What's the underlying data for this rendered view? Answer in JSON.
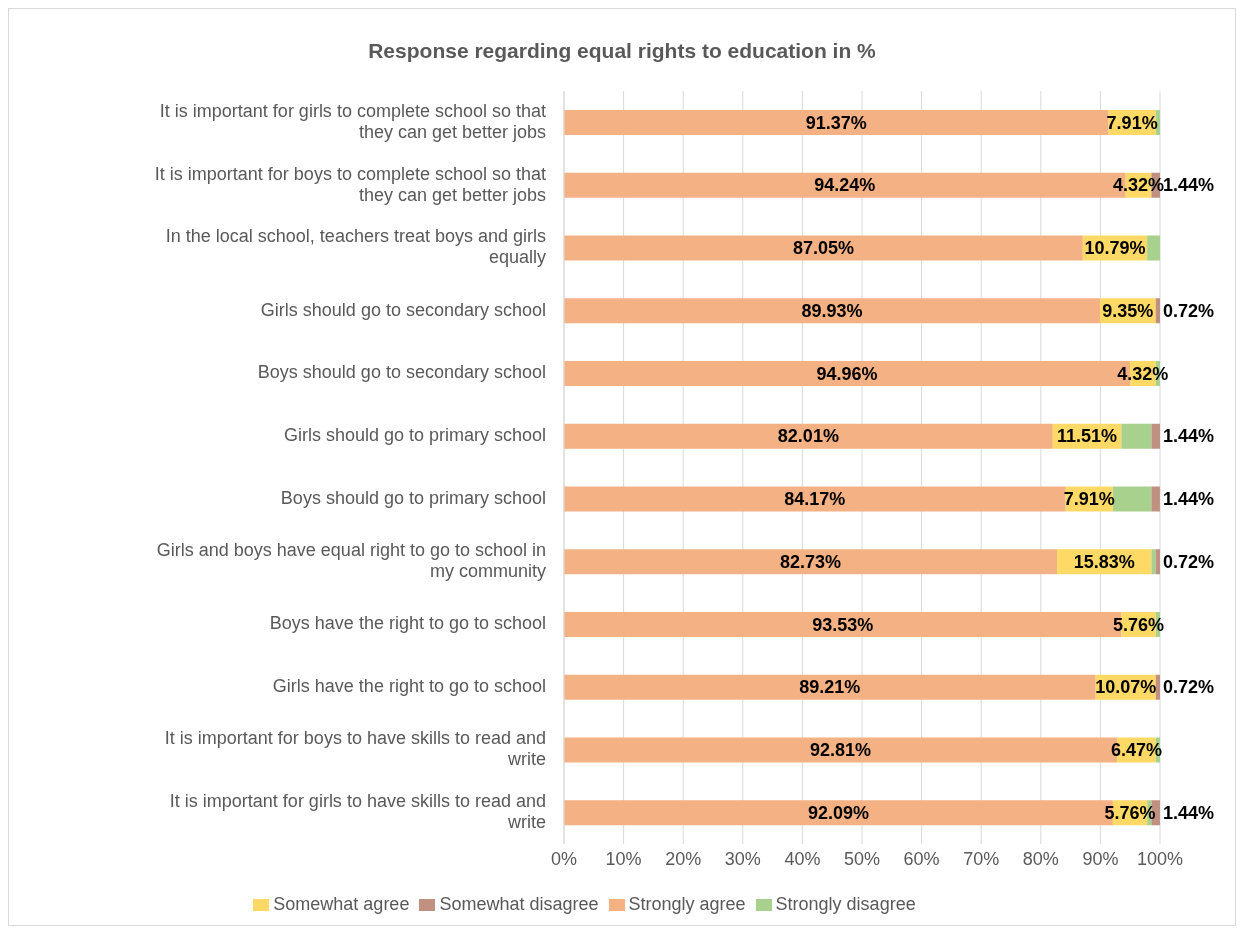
{
  "chart_data": {
    "type": "bar",
    "orientation": "horizontal",
    "stacked": true,
    "title": "Response regarding equal rights to education in %",
    "categories": [
      "It is important for girls to complete school so that they can get better jobs",
      "It is important for boys to complete school so that they can get better jobs",
      "In the local school, teachers treat boys and girls equally",
      "Girls should go to secondary school",
      "Boys should go to secondary school",
      "Girls should go to primary school",
      "Boys should go to primary school",
      "Girls and boys have equal right to go to school in my community",
      "Boys have the right to go to school",
      "Girls have the right to go to school",
      "It is important for boys to have skills to read and write",
      "It is important for girls to have skills to read and write"
    ],
    "series": [
      {
        "name": "Strongly agree",
        "color": "#f4b183",
        "values": [
          91.37,
          94.24,
          87.05,
          89.93,
          94.96,
          82.01,
          84.17,
          82.73,
          93.53,
          89.21,
          92.81,
          92.09
        ],
        "value_labels": [
          "91.37%",
          "94.24%",
          "87.05%",
          "89.93%",
          "94.96%",
          "82.01%",
          "84.17%",
          "82.73%",
          "93.53%",
          "89.21%",
          "92.81%",
          "92.09%"
        ]
      },
      {
        "name": "Somewhat agree",
        "color": "#ffd966",
        "values": [
          7.91,
          4.32,
          10.79,
          9.35,
          4.32,
          11.51,
          7.91,
          15.83,
          5.76,
          10.07,
          6.47,
          5.76
        ],
        "value_labels": [
          "7.91%",
          "4.32%",
          "10.79%",
          "9.35%",
          "4.32%",
          "11.51%",
          "7.91%",
          "15.83%",
          "5.76%",
          "10.07%",
          "6.47%",
          "5.76%"
        ]
      },
      {
        "name": "Strongly disagree",
        "color": "#a9d18e",
        "values": [
          0.72,
          0,
          2.16,
          0,
          0.72,
          5.04,
          6.47,
          0.72,
          0.71,
          0,
          0.72,
          0.71
        ],
        "value_labels": [
          null,
          null,
          null,
          null,
          null,
          null,
          null,
          null,
          null,
          null,
          null,
          null
        ]
      },
      {
        "name": "Somewhat disagree",
        "color": "#c09080",
        "values": [
          0,
          1.44,
          0,
          0.72,
          0,
          1.44,
          1.44,
          0.72,
          0,
          0.72,
          0,
          1.44
        ],
        "value_labels": [
          null,
          "1.44%",
          null,
          "0.72%",
          null,
          "1.44%",
          "1.44%",
          "0.72%",
          null,
          "0.72%",
          null,
          "1.44%"
        ]
      }
    ],
    "xlim": [
      0,
      100
    ],
    "xticks": [
      {
        "value": 0,
        "label": "0%"
      },
      {
        "value": 10,
        "label": "10%"
      },
      {
        "value": 20,
        "label": "20%"
      },
      {
        "value": 30,
        "label": "30%"
      },
      {
        "value": 40,
        "label": "40%"
      },
      {
        "value": 50,
        "label": "50%"
      },
      {
        "value": 60,
        "label": "60%"
      },
      {
        "value": 70,
        "label": "70%"
      },
      {
        "value": 80,
        "label": "80%"
      },
      {
        "value": 90,
        "label": "90%"
      },
      {
        "value": 100,
        "label": "100%"
      }
    ],
    "grid": "x",
    "legend": "bottom"
  }
}
